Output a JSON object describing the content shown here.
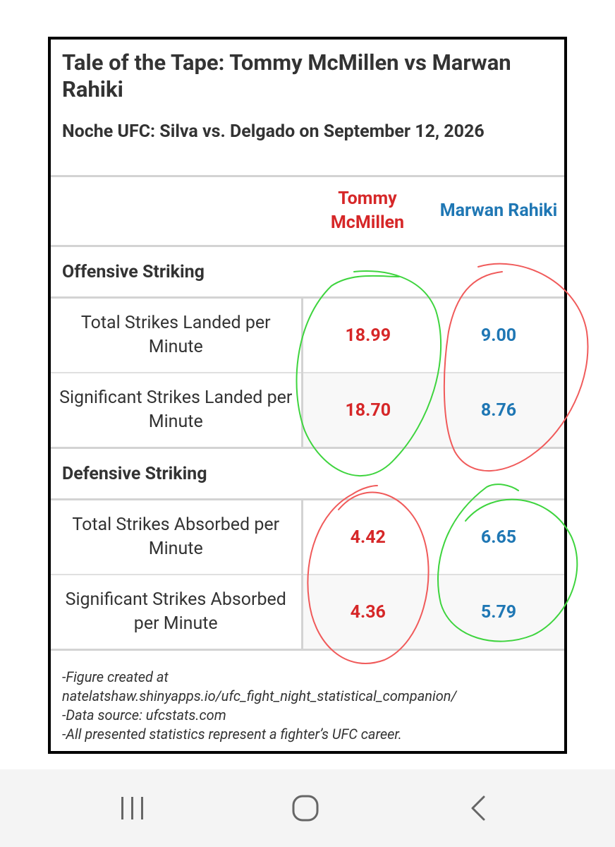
{
  "card": {
    "title": "Tale of the Tape: Tommy McMillen vs Marwan Rahiki",
    "subtitle": "Noche UFC: Silva vs. Delgado on September 12, 2026"
  },
  "table": {
    "fighter_a": "Tommy McMillen",
    "fighter_b": "Marwan Rahiki",
    "colors": {
      "fighter_a": "#d62728",
      "fighter_b": "#1f77b4"
    },
    "sections": [
      {
        "name": "Offensive Striking",
        "rows": [
          {
            "label": "Total Strikes Landed per Minute",
            "a": "18.99",
            "b": "9.00"
          },
          {
            "label": "Significant Strikes Landed per Minute",
            "a": "18.70",
            "b": "8.76"
          }
        ]
      },
      {
        "name": "Defensive Striking",
        "rows": [
          {
            "label": "Total Strikes Absorbed per Minute",
            "a": "4.42",
            "b": "6.65"
          },
          {
            "label": "Significant Strikes Absorbed per Minute",
            "a": "4.36",
            "b": "5.79"
          }
        ]
      }
    ]
  },
  "footnotes": [
    "-Figure created at",
    "natelatshaw.shinyapps.io/ufc_fight_night_statistical_companion/",
    "-Data source: ufcstats.com",
    "-All presented statistics represent a fighter’s UFC career."
  ],
  "annotations": {
    "ink_colors": {
      "green": "#3ed43e",
      "red": "#f05a5a"
    }
  },
  "navbar": {
    "icons": [
      "recent-apps-icon",
      "home-icon",
      "back-icon"
    ]
  }
}
